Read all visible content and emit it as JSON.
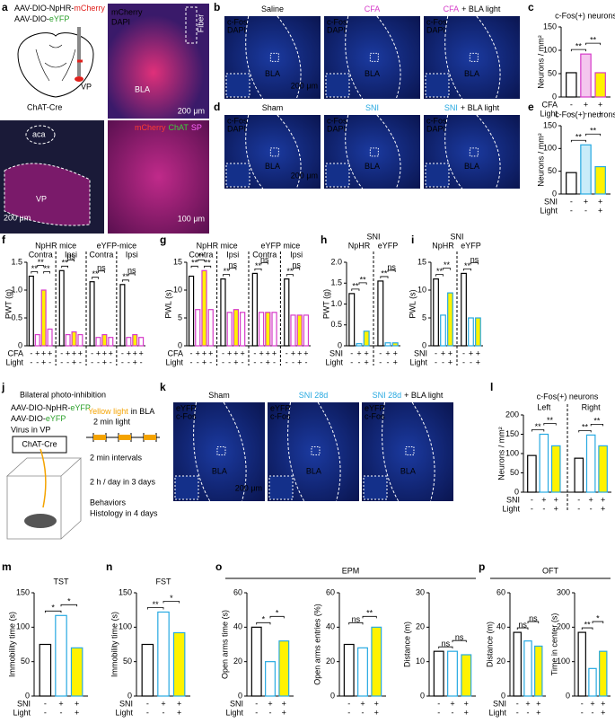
{
  "panel_letters": [
    "a",
    "b",
    "c",
    "d",
    "e",
    "f",
    "g",
    "h",
    "i",
    "j",
    "k",
    "l",
    "m",
    "n",
    "o",
    "p"
  ],
  "a": {
    "virus_1": [
      "AAV-DIO-NpHR-",
      "mCherry"
    ],
    "virus_2": [
      "AAV-DIO-",
      "eYFP"
    ],
    "target": "VP",
    "mouse_line": "ChAT-Cre",
    "image_1": {
      "stains": [
        "mCherry",
        "DAPI"
      ],
      "fiber": "Fiber",
      "region": "BLA",
      "scale": "200 μm"
    },
    "image_2": {
      "regions": [
        "aca",
        "VP"
      ],
      "scale": "200 μm"
    },
    "image_3": {
      "stains": [
        "mCherry",
        "ChAT",
        "SP"
      ],
      "scale": "100 μm"
    }
  },
  "b": {
    "titles": [
      [
        "Saline"
      ],
      [
        "CFA"
      ],
      [
        "CFA",
        "+ BLA light"
      ]
    ],
    "stains": [
      "c-Fos",
      "DAPI"
    ],
    "region": "BLA",
    "scale": "200 μm"
  },
  "d": {
    "titles": [
      [
        "Sham"
      ],
      [
        "SNI"
      ],
      [
        "SNI",
        "+ BLA light"
      ]
    ],
    "stains": [
      "c-Fos",
      "DAPI"
    ],
    "region": "BLA",
    "scale": "200 μm"
  },
  "k": {
    "titles": [
      [
        "Sham"
      ],
      [
        "SNI 28d"
      ],
      [
        "SNI 28d",
        "+ BLA light"
      ]
    ],
    "stains": [
      "eYFP",
      "c-Fos"
    ],
    "region": "BLA",
    "scale": "200 μm"
  },
  "j": {
    "title": "Bilateral photo-inhibition",
    "viruses": [
      [
        "AAV-DIO-NpHR-",
        "eYFP"
      ],
      [
        "AAV-DIO-",
        "eYFP"
      ]
    ],
    "virus_site": "Virus in VP",
    "mouse_line": "ChAT-Cre",
    "light": [
      "Yellow light",
      "in BLA"
    ],
    "light_duration": "2 min light",
    "interval": "2 min intervals",
    "schedule": "2 h / day in 3 days",
    "tests": [
      "Behaviors",
      "Histology in 4 days"
    ]
  },
  "charts": {
    "c": {
      "type": "bar",
      "title": "c-Fos(+) neurons",
      "ylabel": "Neurons / mm²",
      "ylim": [
        0,
        150
      ],
      "yticks": [
        0,
        50,
        100,
        150
      ],
      "groups": [
        {
          "values": [
            52,
            92,
            52
          ],
          "sig": [
            "**",
            "**"
          ]
        }
      ],
      "fills": [
        "#ffffff",
        "#f4c6ee",
        "#fff200"
      ],
      "strokes": [
        "#000000",
        "#d63bc9",
        "#d63bc9"
      ],
      "rows": [
        {
          "name": "CFA",
          "color": "#d63bc9",
          "signs": [
            "-",
            "+",
            "+"
          ]
        },
        {
          "name": "Light",
          "color": "#000000",
          "signs": [
            "-",
            "-",
            "+"
          ]
        }
      ]
    },
    "e": {
      "type": "bar",
      "title": "c-Fos(+) neurons",
      "ylabel": "Neurons / mm²",
      "ylim": [
        0,
        150
      ],
      "yticks": [
        0,
        50,
        100,
        150
      ],
      "groups": [
        {
          "values": [
            47,
            108,
            60
          ],
          "sig": [
            "**",
            "**"
          ]
        }
      ],
      "fills": [
        "#ffffff",
        "#c9ecf9",
        "#fff200"
      ],
      "strokes": [
        "#000000",
        "#27a9e1",
        "#27a9e1"
      ],
      "rows": [
        {
          "name": "SNI",
          "color": "#27a9e1",
          "signs": [
            "-",
            "+",
            "+"
          ]
        },
        {
          "name": "Light",
          "color": "#000000",
          "signs": [
            "-",
            "-",
            "+"
          ]
        }
      ]
    },
    "f": {
      "type": "bar",
      "ylabel": "PWT (g)",
      "ylim": [
        0,
        1.5
      ],
      "yticks": [
        0,
        0.5,
        {
          "value": 1,
          "label": "1.0"
        },
        1.5
      ],
      "headers": [
        "NpHR mice",
        "eYFP-mice"
      ],
      "groups": [
        {
          "name": "Contra",
          "values": [
            1.25,
            0.2,
            1.0,
            0.3
          ],
          "sig": [
            "**",
            "**",
            "**"
          ]
        },
        {
          "name": "Ipsi",
          "values": [
            1.35,
            0.2,
            0.25,
            0.2
          ],
          "sig": [
            "**",
            "ns"
          ]
        },
        {
          "name": "Contra",
          "values": [
            1.15,
            0.15,
            0.2,
            0.15
          ],
          "sig": [
            "**",
            "ns"
          ]
        },
        {
          "name": "Ipsi",
          "values": [
            1.1,
            0.15,
            0.2,
            0.15
          ],
          "sig": [
            "**",
            "ns"
          ]
        }
      ],
      "fills": [
        "#ffffff",
        "#ffffff",
        "#fff200",
        "#ffffff"
      ],
      "strokes": [
        "#000000",
        "#d63bc9",
        "#d63bc9",
        "#d63bc9"
      ],
      "rows": [
        {
          "name": "CFA",
          "color": "#000000",
          "signs": [
            "-",
            "+",
            "+",
            "+"
          ]
        },
        {
          "name": "Light",
          "color": "#000000",
          "signs": [
            "-",
            "-",
            "+",
            "-"
          ]
        }
      ]
    },
    "g": {
      "type": "bar",
      "ylabel": "PWL (s)",
      "ylim": [
        0,
        15
      ],
      "yticks": [
        0,
        5,
        10,
        15
      ],
      "headers": [
        "NpHR mice",
        "eYFP mice"
      ],
      "groups": [
        {
          "name": "Contra",
          "values": [
            12.5,
            6.5,
            13.5,
            6.5
          ],
          "sig": [
            "**",
            "**",
            "**"
          ]
        },
        {
          "name": "Ipsi",
          "values": [
            12,
            6,
            6.5,
            6
          ],
          "sig": [
            "**",
            "ns"
          ]
        },
        {
          "name": "Contra",
          "values": [
            13,
            6,
            6,
            6
          ],
          "sig": [
            "**",
            "ns"
          ]
        },
        {
          "name": "Ipsi",
          "values": [
            12,
            5.5,
            5.5,
            5.5
          ],
          "sig": [
            "**",
            "ns"
          ]
        }
      ],
      "fills": [
        "#ffffff",
        "#ffffff",
        "#fff200",
        "#ffffff"
      ],
      "strokes": [
        "#000000",
        "#d63bc9",
        "#d63bc9",
        "#d63bc9"
      ],
      "rows": [
        {
          "name": "CFA",
          "color": "#000000",
          "signs": [
            "-",
            "+",
            "+",
            "+"
          ]
        },
        {
          "name": "Light",
          "color": "#000000",
          "signs": [
            "-",
            "-",
            "+",
            "-"
          ]
        }
      ]
    },
    "h": {
      "type": "bar",
      "title": "SNI",
      "ylabel": "PWT (g)",
      "ylim": [
        0,
        2
      ],
      "yticks": [
        0,
        0.5,
        {
          "value": 1,
          "label": "1.0"
        },
        1.5,
        {
          "value": 2,
          "label": "2.0"
        }
      ],
      "headers": [
        "NpHR",
        "eYFP"
      ],
      "groups": [
        {
          "values": [
            1.25,
            0.05,
            0.35
          ],
          "sig": [
            "**",
            "**"
          ]
        },
        {
          "values": [
            1.55,
            0.07,
            0.07
          ],
          "sig": [
            "**",
            "ns"
          ]
        }
      ],
      "fills": [
        "#ffffff",
        "#ffffff",
        "#fff200"
      ],
      "strokes": [
        "#000000",
        "#27a9e1",
        "#27a9e1"
      ],
      "rows": [
        {
          "name": "SNI",
          "color": "#000000",
          "signs": [
            "-",
            "+",
            "+"
          ]
        },
        {
          "name": "Light",
          "color": "#000000",
          "signs": [
            "-",
            "-",
            "+"
          ]
        }
      ]
    },
    "i": {
      "type": "bar",
      "title": "SNI",
      "ylabel": "PWL (s)",
      "ylim": [
        0,
        15
      ],
      "yticks": [
        0,
        5,
        10,
        15
      ],
      "headers": [
        "NpHR",
        "eYFP"
      ],
      "groups": [
        {
          "values": [
            12,
            5.5,
            9.5
          ],
          "sig": [
            "**",
            "**"
          ]
        },
        {
          "values": [
            13,
            5,
            5
          ],
          "sig": [
            "**",
            "ns"
          ]
        }
      ],
      "fills": [
        "#ffffff",
        "#ffffff",
        "#fff200"
      ],
      "strokes": [
        "#000000",
        "#27a9e1",
        "#27a9e1"
      ],
      "rows": [
        {
          "name": "SNI",
          "color": "#000000",
          "signs": [
            "-",
            "+",
            "+"
          ]
        },
        {
          "name": "Light",
          "color": "#000000",
          "signs": [
            "-",
            "-",
            "+"
          ]
        }
      ]
    },
    "l": {
      "type": "bar",
      "title": "c-Fos(+) neurons",
      "ylabel": "Neurons / mm²",
      "ylim": [
        0,
        200
      ],
      "yticks": [
        0,
        50,
        100,
        150,
        200
      ],
      "groups": [
        {
          "name": "Left",
          "values": [
            95,
            150,
            120
          ],
          "sig": [
            "**",
            "**"
          ]
        },
        {
          "name": "Right",
          "values": [
            88,
            148,
            120
          ],
          "sig": [
            "**",
            "**"
          ]
        }
      ],
      "fills": [
        "#ffffff",
        "#ffffff",
        "#fff200"
      ],
      "strokes": [
        "#000000",
        "#27a9e1",
        "#27a9e1"
      ],
      "rows": [
        {
          "name": "SNI",
          "color": "#27a9e1",
          "signs": [
            "-",
            "+",
            "+"
          ]
        },
        {
          "name": "Light",
          "color": "#000000",
          "signs": [
            "-",
            "-",
            "+"
          ]
        }
      ]
    },
    "m": {
      "type": "bar",
      "title": "TST",
      "ylabel": "Immobility time (s)",
      "ylim": [
        0,
        150
      ],
      "yticks": [
        0,
        50,
        100,
        150
      ],
      "groups": [
        {
          "values": [
            75,
            117,
            70
          ],
          "sig": [
            "*",
            "*"
          ]
        }
      ],
      "fills": [
        "#ffffff",
        "#ffffff",
        "#fff200"
      ],
      "strokes": [
        "#000000",
        "#27a9e1",
        "#27a9e1"
      ],
      "rows": [
        {
          "name": "SNI",
          "color": "#27a9e1",
          "signs": [
            "-",
            "+",
            "+"
          ]
        },
        {
          "name": "Light",
          "color": "#000000",
          "signs": [
            "-",
            "-",
            "+"
          ]
        }
      ]
    },
    "n": {
      "type": "bar",
      "title": "FST",
      "ylabel": "Immobility time (s)",
      "ylim": [
        0,
        150
      ],
      "yticks": [
        0,
        50,
        100,
        150
      ],
      "groups": [
        {
          "values": [
            75,
            122,
            92
          ],
          "sig": [
            "**",
            "*"
          ]
        }
      ],
      "fills": [
        "#ffffff",
        "#ffffff",
        "#fff200"
      ],
      "strokes": [
        "#000000",
        "#27a9e1",
        "#27a9e1"
      ],
      "rows": [
        {
          "name": "SNI",
          "color": "#27a9e1",
          "signs": [
            "-",
            "+",
            "+"
          ]
        },
        {
          "name": "Light",
          "color": "#000000",
          "signs": [
            "-",
            "-",
            "+"
          ]
        }
      ]
    },
    "o": {
      "type": "bar",
      "title": "EPM",
      "plots": [
        {
          "ylabel": "Open arms time (s)",
          "ylim": [
            0,
            60
          ],
          "yticks": [
            0,
            20,
            40,
            60
          ],
          "values": [
            40,
            20,
            32
          ],
          "sig": [
            "*",
            "*"
          ]
        },
        {
          "ylabel": "Open arms entries (%)",
          "ylim": [
            0,
            60
          ],
          "yticks": [
            0,
            20,
            40,
            60
          ],
          "values": [
            30,
            28,
            40
          ],
          "sig": [
            "ns",
            "**"
          ]
        },
        {
          "ylabel": "Distance (m)",
          "ylim": [
            0,
            30
          ],
          "yticks": [
            0,
            10,
            20,
            30
          ],
          "values": [
            13,
            13,
            12
          ],
          "sig": [
            "ns",
            "ns"
          ]
        }
      ],
      "fills": [
        "#ffffff",
        "#ffffff",
        "#fff200"
      ],
      "strokes": [
        "#000000",
        "#27a9e1",
        "#27a9e1"
      ],
      "rows": [
        {
          "name": "SNI",
          "color": "#27a9e1",
          "signs": [
            "-",
            "+",
            "+"
          ]
        },
        {
          "name": "Light",
          "color": "#000000",
          "signs": [
            "-",
            "-",
            "+"
          ]
        }
      ]
    },
    "p": {
      "type": "bar",
      "title": "OFT",
      "plots": [
        {
          "ylabel": "Distance (m)",
          "ylim": [
            0,
            60
          ],
          "yticks": [
            0,
            20,
            40,
            60
          ],
          "values": [
            37,
            32,
            29
          ],
          "sig": [
            "ns",
            "ns"
          ]
        },
        {
          "ylabel": "Time in center (s)",
          "ylim": [
            0,
            300
          ],
          "yticks": [
            0,
            100,
            200,
            300
          ],
          "values": [
            185,
            80,
            130
          ],
          "sig": [
            "**",
            "*"
          ]
        }
      ],
      "fills": [
        "#ffffff",
        "#ffffff",
        "#fff200"
      ],
      "strokes": [
        "#000000",
        "#27a9e1",
        "#27a9e1"
      ],
      "rows": [
        {
          "name": "SNI",
          "color": "#27a9e1",
          "signs": [
            "-",
            "+",
            "+"
          ]
        },
        {
          "name": "Light",
          "color": "#000000",
          "signs": [
            "-",
            "-",
            "+"
          ]
        }
      ]
    }
  }
}
